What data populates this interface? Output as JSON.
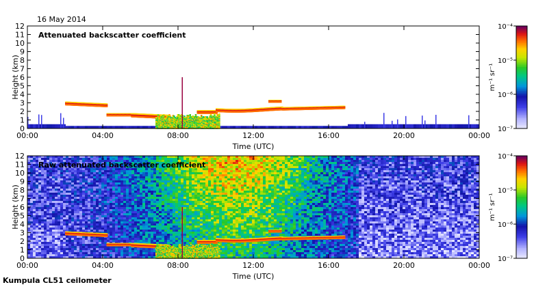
{
  "header": {
    "date": "16 May 2014",
    "footer": "Kumpula CL51 ceilometer"
  },
  "colorbar": {
    "units": "m⁻¹ sr⁻¹",
    "labels": [
      "10⁻⁴",
      "10⁻⁵",
      "10⁻⁶",
      "10⁻⁷"
    ]
  },
  "chart_data": [
    {
      "type": "heatmap",
      "title": "Attenuated backscatter coefficient",
      "xlabel": "Time (UTC)",
      "ylabel": "Height (km)",
      "xlim": [
        0,
        24
      ],
      "ylim": [
        0,
        12
      ],
      "xticks": [
        "00:00",
        "04:00",
        "08:00",
        "12:00",
        "16:00",
        "20:00",
        "00:00"
      ],
      "yticks": [
        "0",
        "1",
        "2",
        "3",
        "4",
        "5",
        "6",
        "7",
        "8",
        "9",
        "10",
        "11",
        "12"
      ],
      "color_scale": {
        "min": "1e-7",
        "max": "1e-4",
        "log": true
      },
      "features": [
        {
          "name": "cloud layer",
          "time": [
            2.0,
            4.2
          ],
          "height_km": [
            2.6,
            3.2
          ]
        },
        {
          "name": "cloud layer",
          "time": [
            5.5,
            7.5
          ],
          "height_km": [
            1.2,
            1.8
          ]
        },
        {
          "name": "cloud layer",
          "time": [
            9.0,
            16.8
          ],
          "height_km": [
            1.8,
            3.5
          ]
        },
        {
          "name": "surface signal",
          "time": [
            0.0,
            24.0
          ],
          "height_km": [
            0.0,
            0.6
          ]
        }
      ]
    },
    {
      "type": "heatmap",
      "title": "Raw attenuated backscatter coefficient",
      "xlabel": "Time (UTC)",
      "ylabel": "Height (km)",
      "xlim": [
        0,
        24
      ],
      "ylim": [
        0,
        12
      ],
      "xticks": [
        "00:00",
        "04:00",
        "08:00",
        "12:00",
        "16:00",
        "20:00",
        "00:00"
      ],
      "yticks": [
        "0",
        "1",
        "2",
        "3",
        "4",
        "5",
        "6",
        "7",
        "8",
        "9",
        "10",
        "11",
        "12"
      ],
      "color_scale": {
        "min": "1e-7",
        "max": "1e-4",
        "log": true
      },
      "features": [
        {
          "name": "noise background",
          "time": [
            0.0,
            24.0
          ],
          "height_km": [
            0.0,
            12.0
          ]
        },
        {
          "name": "cloud layer",
          "time": [
            2.0,
            16.8
          ],
          "height_km": [
            1.0,
            3.5
          ]
        }
      ]
    }
  ]
}
